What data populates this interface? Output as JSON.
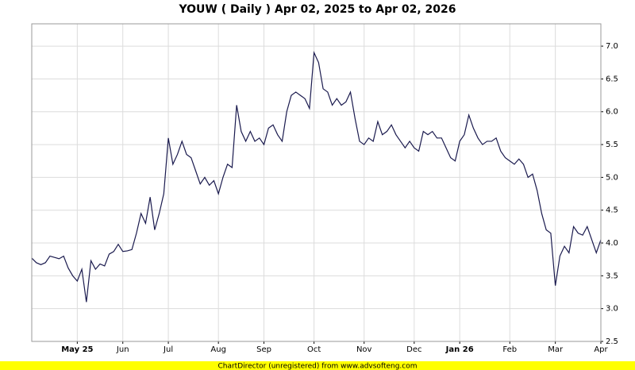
{
  "chart_data": {
    "type": "line",
    "title": "YOUW ( Daily ) Apr 02, 2025 to Apr 02, 2026",
    "footer": "ChartDirector (unregistered) from www.advsofteng.com",
    "categories": [
      null,
      null,
      null,
      null,
      null,
      null,
      null,
      null,
      null,
      null,
      "May 25",
      null,
      null,
      null,
      null,
      null,
      null,
      null,
      null,
      null,
      "Jun",
      null,
      null,
      null,
      null,
      null,
      null,
      null,
      null,
      null,
      "Jul",
      null,
      null,
      null,
      null,
      null,
      null,
      null,
      null,
      null,
      null,
      "Aug",
      null,
      null,
      null,
      null,
      null,
      null,
      null,
      null,
      null,
      "Sep",
      null,
      null,
      null,
      null,
      null,
      null,
      null,
      null,
      null,
      null,
      "Oct",
      null,
      null,
      null,
      null,
      null,
      null,
      null,
      null,
      null,
      null,
      "Nov",
      null,
      null,
      null,
      null,
      null,
      null,
      null,
      null,
      null,
      null,
      "Dec",
      null,
      null,
      null,
      null,
      null,
      null,
      null,
      null,
      null,
      "Jan 26",
      null,
      null,
      null,
      null,
      null,
      null,
      null,
      null,
      null,
      null,
      "Feb",
      null,
      null,
      null,
      null,
      null,
      null,
      null,
      null,
      null,
      "Mar",
      null,
      null,
      null,
      null,
      null,
      null,
      null,
      null,
      null,
      "Apr"
    ],
    "values": [
      3.77,
      3.7,
      3.67,
      3.7,
      3.8,
      3.78,
      3.76,
      3.8,
      3.62,
      3.5,
      3.42,
      3.6,
      3.1,
      3.73,
      3.6,
      3.68,
      3.65,
      3.83,
      3.87,
      3.98,
      3.87,
      3.88,
      3.9,
      4.15,
      4.45,
      4.3,
      4.7,
      4.2,
      4.45,
      4.75,
      5.6,
      5.2,
      5.35,
      5.55,
      5.35,
      5.3,
      5.1,
      4.9,
      5.0,
      4.88,
      4.95,
      4.75,
      5.0,
      5.2,
      5.15,
      6.1,
      5.7,
      5.55,
      5.7,
      5.55,
      5.6,
      5.5,
      5.75,
      5.8,
      5.65,
      5.55,
      6.0,
      6.25,
      6.3,
      6.25,
      6.2,
      6.05,
      6.9,
      6.75,
      6.35,
      6.3,
      6.1,
      6.2,
      6.1,
      6.15,
      6.3,
      5.9,
      5.55,
      5.5,
      5.6,
      5.55,
      5.85,
      5.65,
      5.7,
      5.8,
      5.65,
      5.55,
      5.45,
      5.55,
      5.45,
      5.4,
      5.7,
      5.65,
      5.7,
      5.6,
      5.6,
      5.45,
      5.3,
      5.25,
      5.55,
      5.65,
      5.95,
      5.75,
      5.6,
      5.5,
      5.55,
      5.55,
      5.6,
      5.4,
      5.3,
      5.25,
      5.2,
      5.28,
      5.2,
      5.0,
      5.05,
      4.8,
      4.45,
      4.2,
      4.15,
      3.35,
      3.8,
      3.95,
      3.85,
      4.25,
      4.15,
      4.12,
      4.25,
      4.05,
      3.85,
      4.05
    ],
    "color": "#1a1a4e",
    "ylim": [
      2.5,
      7.34
    ],
    "yticks": [
      2.5,
      {
        "value": 3,
        "label": "3.0"
      },
      3.5,
      {
        "value": 4,
        "label": "4.0"
      },
      4.5,
      {
        "value": 5,
        "label": "5.0"
      },
      5.5,
      {
        "value": 6,
        "label": "6.0"
      },
      6.5,
      {
        "value": 7,
        "label": "7.0"
      }
    ],
    "grid": true
  }
}
